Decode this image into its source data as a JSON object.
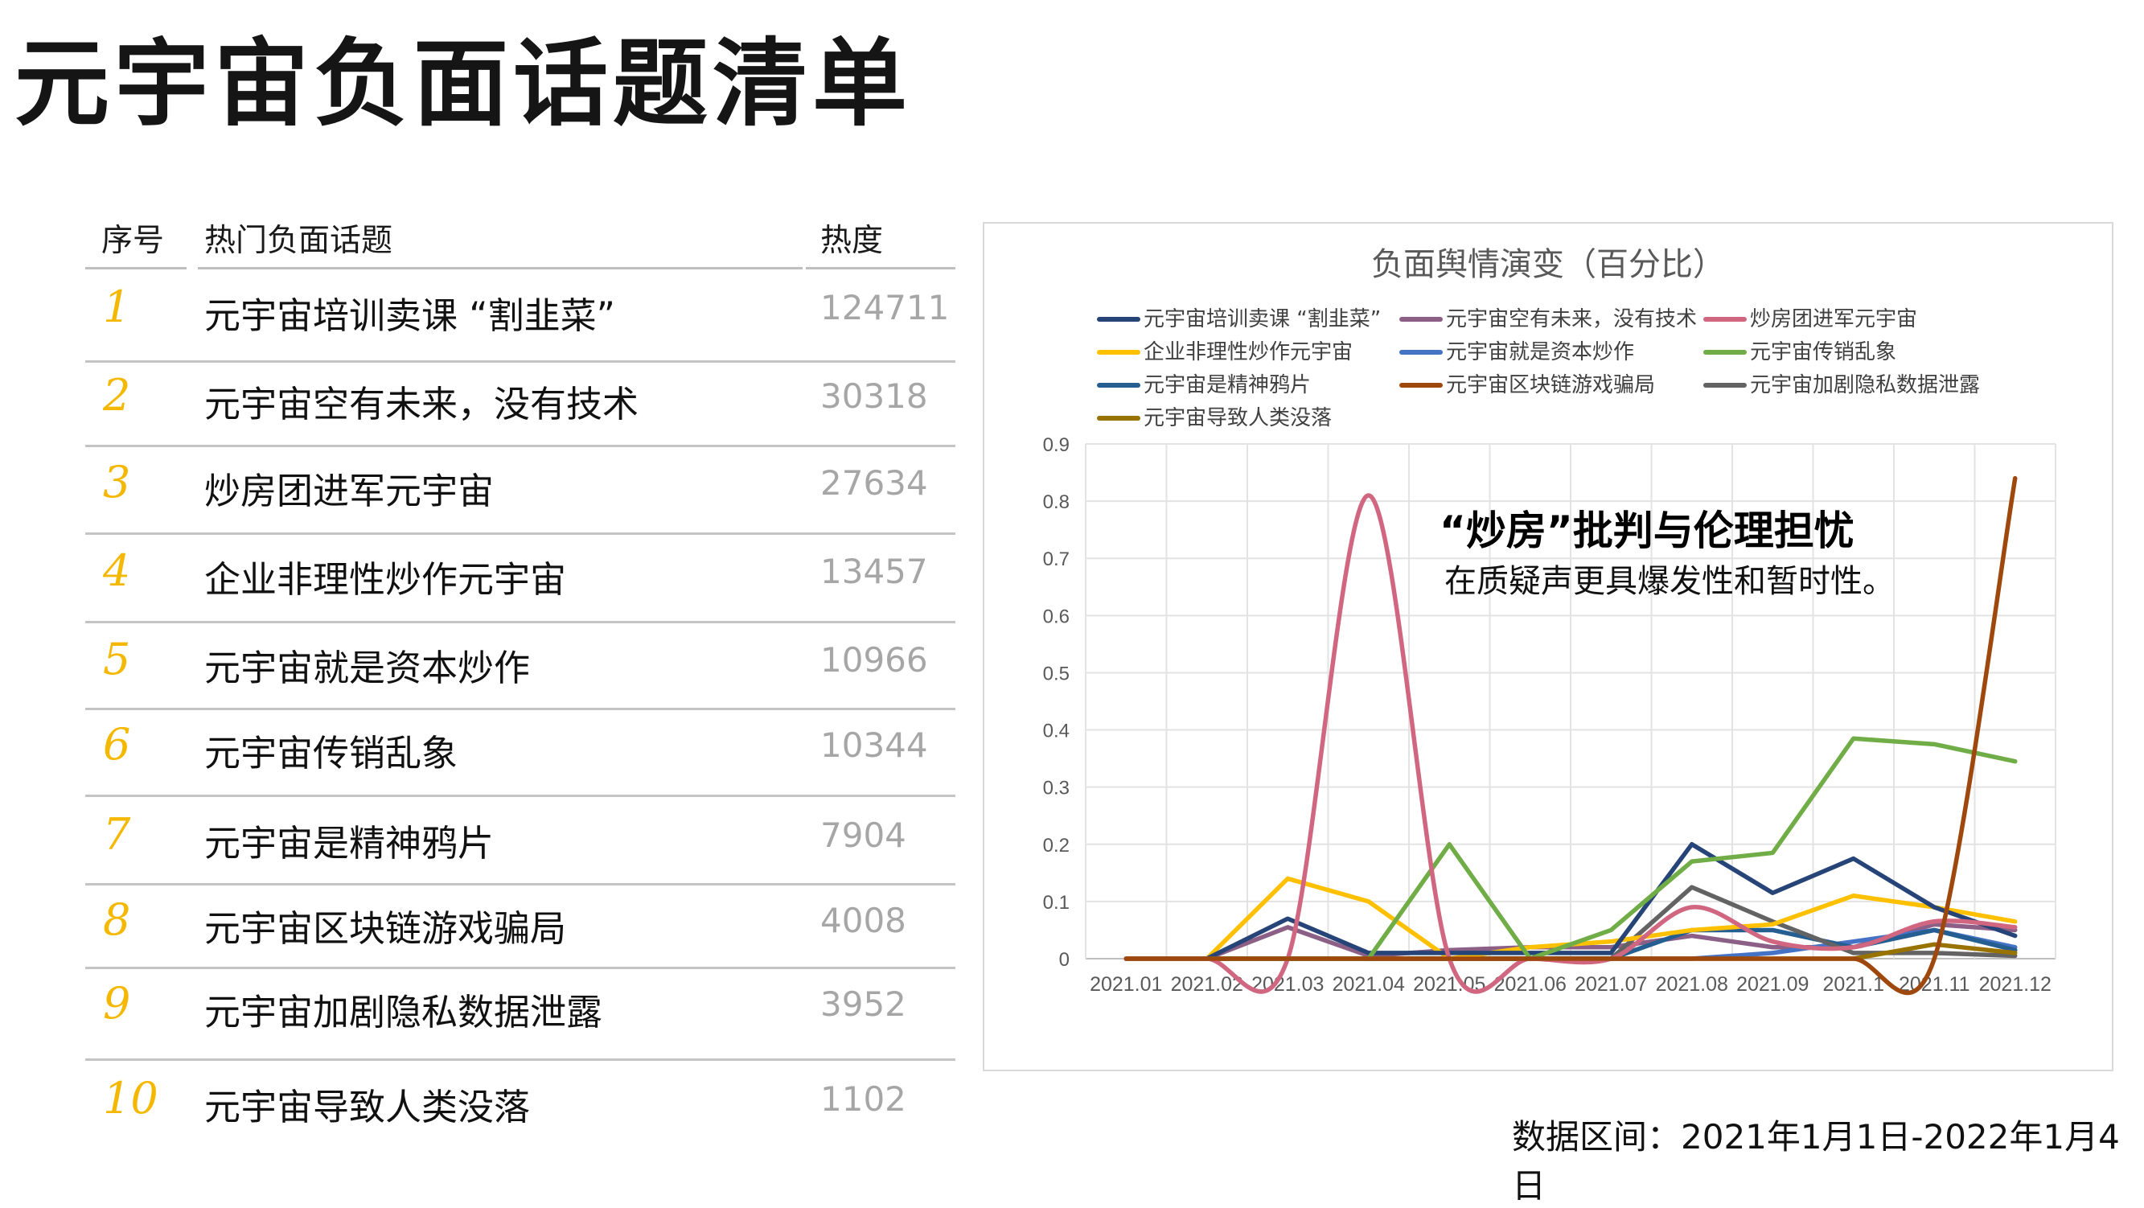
{
  "page_title": "元宇宙负面话题清单",
  "table": {
    "headers": [
      "序号",
      "热门负面话题",
      "热度"
    ],
    "rows": [
      {
        "num": "1",
        "topic": "元宇宙培训卖课 “割韭菜”",
        "heat": "124711"
      },
      {
        "num": "2",
        "topic": "元宇宙空有未来，没有技术",
        "heat": "30318"
      },
      {
        "num": "3",
        "topic": "炒房团进军元宇宙",
        "heat": "27634"
      },
      {
        "num": "4",
        "topic": "企业非理性炒作元宇宙",
        "heat": "13457"
      },
      {
        "num": "5",
        "topic": "元宇宙就是资本炒作",
        "heat": "10966"
      },
      {
        "num": "6",
        "topic": "元宇宙传销乱象",
        "heat": "10344"
      },
      {
        "num": "7",
        "topic": "元宇宙是精神鸦片",
        "heat": "7904"
      },
      {
        "num": "8",
        "topic": "元宇宙区块链游戏骗局",
        "heat": "4008"
      },
      {
        "num": "9",
        "topic": "元宇宙加剧隐私数据泄露",
        "heat": "3952"
      },
      {
        "num": "10",
        "topic": "元宇宙导致人类没落",
        "heat": "1102"
      }
    ]
  },
  "annotation": {
    "main": "“炒房”批判与伦理担忧",
    "sub": "在质疑声更具爆发性和暂时性。"
  },
  "footnote": "数据区间：2021年1月1日-2022年1月4日",
  "chart_data": {
    "type": "line",
    "title": "负面舆情演变（百分比）",
    "xlabel": "",
    "ylabel": "",
    "ylim": [
      0,
      0.9
    ],
    "yticks": [
      "0",
      "0.1",
      "0.2",
      "0.3",
      "0.4",
      "0.5",
      "0.6",
      "0.7",
      "0.8",
      "0.9"
    ],
    "grid": true,
    "legend_position": "top",
    "categories": [
      "2021.01",
      "2021.02",
      "2021.03",
      "2021.04",
      "2021.05",
      "2021.06",
      "2021.07",
      "2021.08",
      "2021.09",
      "2021.1",
      "2021.11",
      "2021.12"
    ],
    "series": [
      {
        "name": "元宇宙培训卖课 “割韭菜”",
        "color": "#264478",
        "values": [
          0,
          0,
          0.07,
          0.01,
          0.01,
          0.01,
          0.01,
          0.2,
          0.115,
          0.175,
          0.09,
          0.04
        ]
      },
      {
        "name": "元宇宙空有未来，没有技术",
        "color": "#8c5f87",
        "values": [
          0,
          0,
          0.055,
          0.005,
          0.015,
          0.02,
          0.02,
          0.04,
          0.02,
          0.02,
          0.06,
          0.05
        ]
      },
      {
        "name": "炒房团进军元宇宙",
        "color": "#d16680",
        "values": [
          0,
          0,
          0,
          0.81,
          0,
          0,
          0,
          0.09,
          0.03,
          0.02,
          0.065,
          0.055
        ]
      },
      {
        "name": "企业非理性炒作元宇宙",
        "color": "#ffc000",
        "values": [
          0,
          0,
          0.14,
          0.1,
          0,
          0.02,
          0.03,
          0.05,
          0.06,
          0.11,
          0.09,
          0.065
        ]
      },
      {
        "name": "元宇宙就是资本炒作",
        "color": "#4472c4",
        "values": [
          0,
          0,
          0,
          0,
          0,
          0,
          0,
          0,
          0.01,
          0.03,
          0.05,
          0.02
        ]
      },
      {
        "name": "元宇宙传销乱象",
        "color": "#70ad47",
        "values": [
          0,
          0,
          0,
          0,
          0.2,
          0,
          0.05,
          0.17,
          0.185,
          0.385,
          0.375,
          0.345
        ]
      },
      {
        "name": "元宇宙是精神鸦片",
        "color": "#255e91",
        "values": [
          0,
          0,
          0,
          0,
          0,
          0,
          0,
          0.05,
          0.05,
          0.02,
          0.05,
          0.015
        ]
      },
      {
        "name": "元宇宙区块链游戏骗局",
        "color": "#9e480e",
        "values": [
          0,
          0,
          0,
          0,
          0,
          0,
          0,
          0,
          0,
          0,
          0,
          0.84
        ]
      },
      {
        "name": "元宇宙加剧隐私数据泄露",
        "color": "#636363",
        "values": [
          0,
          0,
          0,
          0,
          0,
          0,
          0,
          0.125,
          0.065,
          0.01,
          0.01,
          0.005
        ]
      },
      {
        "name": "元宇宙导致人类没落",
        "color": "#997300",
        "values": [
          0,
          0,
          0,
          0,
          0,
          0,
          0,
          0,
          0,
          0,
          0.025,
          0.01
        ]
      }
    ]
  }
}
